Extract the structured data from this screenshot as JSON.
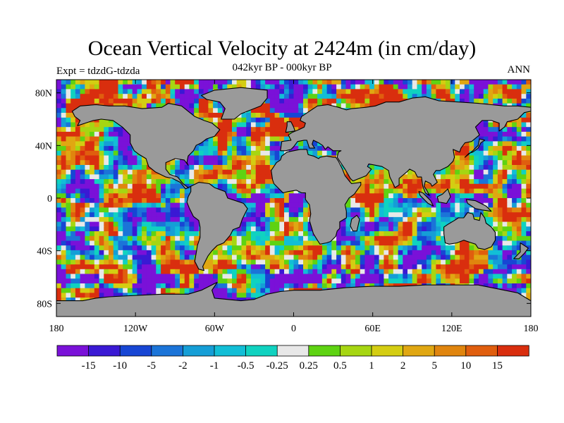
{
  "title": "Ocean Vertical Velocity at 2424m (in cm/day)",
  "subtitle": "042kyr BP - 000kyr BP",
  "experiment": "Expt = tdzdG-tdzda",
  "season": "ANN",
  "colors": {
    "land": "#9a9a9a",
    "neutral": "#e8e8e8",
    "coast": "#000000"
  },
  "map": {
    "lon_range": [
      -180,
      180
    ],
    "lat_range": [
      -90,
      90
    ],
    "lat_ticks": [
      {
        "lat": 80,
        "label": "80N"
      },
      {
        "lat": 40,
        "label": "40N"
      },
      {
        "lat": 0,
        "label": "0"
      },
      {
        "lat": -40,
        "label": "40S"
      },
      {
        "lat": -80,
        "label": "80S"
      }
    ],
    "lon_ticks": [
      {
        "lon": -180,
        "label": "180"
      },
      {
        "lon": -120,
        "label": "120W"
      },
      {
        "lon": -60,
        "label": "60W"
      },
      {
        "lon": 0,
        "label": "0"
      },
      {
        "lon": 60,
        "label": "60E"
      },
      {
        "lon": 120,
        "label": "120E"
      },
      {
        "lon": 180,
        "label": "180"
      }
    ]
  },
  "colorbar": {
    "labels": [
      "-15",
      "-10",
      "-5",
      "-2",
      "-1",
      "-0.5",
      "-0.25",
      "0.25",
      "0.5",
      "1",
      "2",
      "5",
      "10",
      "15"
    ],
    "colors": [
      "#7a11d8",
      "#3a19d4",
      "#1746d4",
      "#1b74d8",
      "#159ed6",
      "#12bed6",
      "#10d2c0",
      "#e8e8e8",
      "#5ed312",
      "#a6d612",
      "#d4cd12",
      "#e0a712",
      "#e0850e",
      "#e05e0e",
      "#d92e0e"
    ]
  }
}
